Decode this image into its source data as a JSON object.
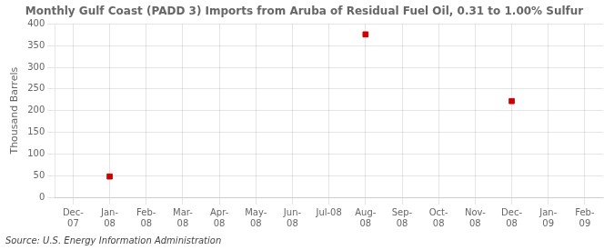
{
  "chart_data": {
    "type": "scatter",
    "title": "Monthly Gulf Coast (PADD 3) Imports from Aruba of Residual Fuel Oil, 0.31 to 1.00% Sulfur",
    "ylabel": "Thousand Barrels",
    "annotations": [
      "Source: U.S. Energy Information Administration"
    ],
    "categories": [
      "Dec-\n07",
      "Jan-\n08",
      "Feb-\n08",
      "Mar-\n08",
      "Apr-\n08",
      "May-\n08",
      "Jun-\n08",
      "Jul-08",
      "Aug-\n08",
      "Sep-\n08",
      "Oct-\n08",
      "Nov-\n08",
      "Dec-\n08",
      "Jan-\n09",
      "Feb-\n09"
    ],
    "values": [
      null,
      48,
      null,
      null,
      null,
      null,
      null,
      null,
      376,
      null,
      null,
      null,
      222,
      null,
      null
    ],
    "color": "#cc0000",
    "marker": "square",
    "ylim": [
      0,
      400
    ],
    "yticks": [
      0,
      50,
      100,
      150,
      200,
      250,
      300,
      350,
      400
    ],
    "grid": true
  }
}
